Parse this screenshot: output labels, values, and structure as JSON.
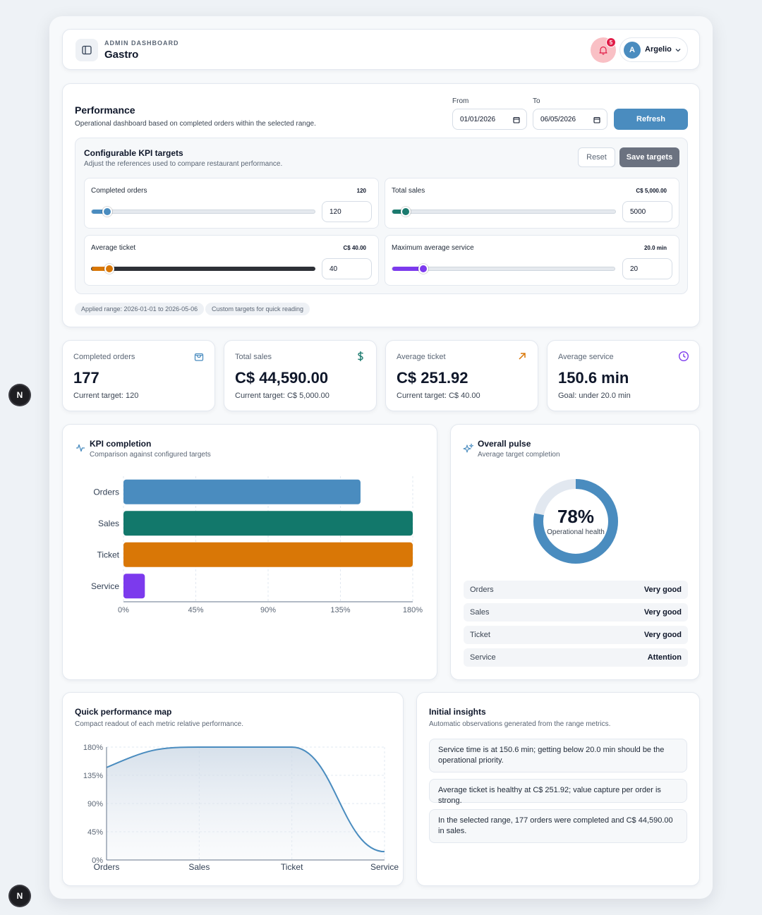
{
  "header": {
    "eyebrow": "ADMIN DASHBOARD",
    "title": "Gastro",
    "notification_count": "5",
    "user": {
      "initial": "A",
      "name": "Argelio"
    }
  },
  "performance": {
    "title": "Performance",
    "subtitle": "Operational dashboard based on completed orders within the selected range.",
    "from_label": "From",
    "from_value": "01/01/2026",
    "to_label": "To",
    "to_value": "06/05/2026",
    "refresh_label": "Refresh",
    "targets": {
      "title": "Configurable KPI targets",
      "subtitle": "Adjust the references used to compare restaurant performance.",
      "reset_label": "Reset",
      "save_label": "Save targets",
      "items": [
        {
          "label": "Completed orders",
          "display": "120",
          "input": "120",
          "slider_fraction": 0.07,
          "color": "#4a8cbf"
        },
        {
          "label": "Total sales",
          "display": "C$ 5,000.00",
          "input": "5000",
          "slider_fraction": 0.06,
          "color": "#1b7a6e"
        },
        {
          "label": "Average ticket",
          "display": "C$ 40.00",
          "input": "40",
          "slider_fraction": 0.08,
          "color": "#d97706"
        },
        {
          "label": "Maximum average service",
          "display": "20.0 min",
          "input": "20",
          "slider_fraction": 0.14,
          "color": "#7c3aed"
        }
      ]
    },
    "pills": [
      "Applied range: 2026-01-01 to 2026-05-06",
      "Custom targets for quick reading"
    ]
  },
  "metrics": [
    {
      "label": "Completed orders",
      "value": "177",
      "sub": "Current target: 120",
      "icon": "shopping-bag-icon",
      "color": "#4a8cbf"
    },
    {
      "label": "Total sales",
      "value": "C$ 44,590.00",
      "sub": "Current target: C$ 5,000.00",
      "icon": "dollar-icon",
      "color": "#1b7a6e"
    },
    {
      "label": "Average ticket",
      "value": "C$ 251.92",
      "sub": "Current target: C$ 40.00",
      "icon": "arrow-up-right-icon",
      "color": "#d97706"
    },
    {
      "label": "Average service",
      "value": "150.6 min",
      "sub": "Goal: under 20.0 min",
      "icon": "clock-icon",
      "color": "#7c3aed"
    }
  ],
  "kpi_completion": {
    "title": "KPI completion",
    "subtitle": "Comparison against configured targets"
  },
  "overall_pulse": {
    "title": "Overall pulse",
    "subtitle": "Average target completion",
    "percent_label": "78%",
    "percent_value": 78,
    "caption": "Operational health",
    "rows": [
      {
        "label": "Orders",
        "status": "Very good"
      },
      {
        "label": "Sales",
        "status": "Very good"
      },
      {
        "label": "Ticket",
        "status": "Very good"
      },
      {
        "label": "Service",
        "status": "Attention"
      }
    ]
  },
  "quick_map": {
    "title": "Quick performance map",
    "subtitle": "Compact readout of each metric relative performance."
  },
  "insights": {
    "title": "Initial insights",
    "subtitle": "Automatic observations generated from the range metrics.",
    "items": [
      "Service time is at 150.6 min; getting below 20.0 min should be the operational priority.",
      "Average ticket is healthy at C$ 251.92; value capture per order is strong.",
      "In the selected range, 177 orders were completed and C$ 44,590.00 in sales."
    ]
  },
  "chart_data": [
    {
      "type": "bar",
      "orientation": "horizontal",
      "categories": [
        "Orders",
        "Sales",
        "Ticket",
        "Service"
      ],
      "values": [
        147.5,
        180,
        180,
        13.3
      ],
      "colors": [
        "#4a8cbf",
        "#12786b",
        "#d97706",
        "#7c3aed"
      ],
      "x_ticks": [
        "0%",
        "45%",
        "90%",
        "135%",
        "180%"
      ],
      "xlim": [
        0,
        180
      ]
    },
    {
      "type": "area",
      "categories": [
        "Orders",
        "Sales",
        "Ticket",
        "Service"
      ],
      "values": [
        147.5,
        180,
        180,
        13.3
      ],
      "y_ticks": [
        "0%",
        "45%",
        "90%",
        "135%",
        "180%"
      ],
      "ylim": [
        0,
        180
      ],
      "color": "#4a8cbf"
    }
  ]
}
